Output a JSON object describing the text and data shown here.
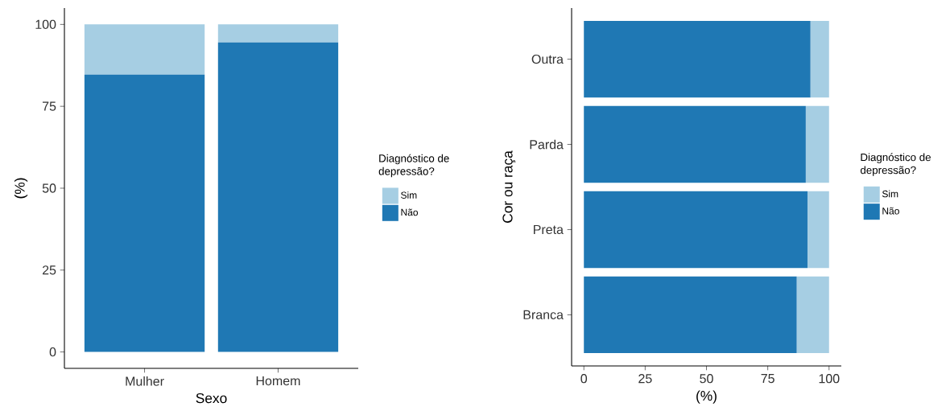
{
  "chart_data": [
    {
      "type": "bar",
      "stacked": true,
      "categories": [
        "Mulher",
        "Homem"
      ],
      "xlabel": "Sexo",
      "ylabel": "(%)",
      "ylim": [
        -5,
        105
      ],
      "yticks": [
        0,
        25,
        50,
        75,
        100
      ],
      "legend": "right",
      "legend_title": "Diagnóstico de depressão?",
      "series": [
        {
          "name": "Não",
          "color": "#1f78b4",
          "values": [
            84.7,
            94.5
          ]
        },
        {
          "name": "Sim",
          "color": "#a6cee3",
          "values": [
            15.3,
            5.5
          ]
        }
      ]
    },
    {
      "type": "bar",
      "stacked": true,
      "orientation": "horizontal",
      "categories": [
        "Outra",
        "Parda",
        "Preta",
        "Branca"
      ],
      "xlabel": "(%)",
      "ylabel": "Cor ou raça",
      "xlim": [
        -5,
        105
      ],
      "xticks": [
        0,
        25,
        50,
        75,
        100
      ],
      "legend": "right",
      "legend_title": "Diagnóstico de depressão?",
      "series": [
        {
          "name": "Não",
          "color": "#1f78b4",
          "values": [
            92.4,
            90.5,
            91.2,
            86.8
          ]
        },
        {
          "name": "Sim",
          "color": "#a6cee3",
          "values": [
            7.6,
            9.5,
            8.8,
            13.2
          ]
        }
      ]
    }
  ]
}
